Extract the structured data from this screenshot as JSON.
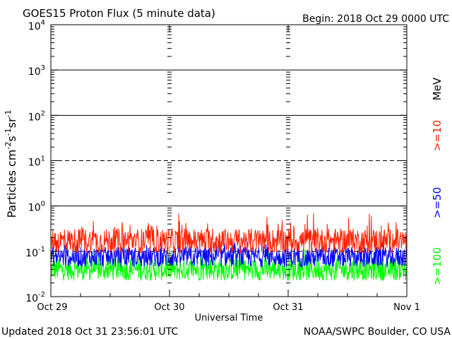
{
  "chart_data": {
    "type": "line",
    "title": "GOES15 Proton Flux (5 minute data)",
    "begin_label": "Begin: 2018 Oct 29 0000 UTC",
    "xlabel": "Universal Time",
    "ylabel": "Particles cm-2 s-1 sr-1",
    "ylabel_parts": {
      "main": "Particles cm",
      "e1": "-2",
      "s": "s",
      "e2": "-1",
      "sr": "sr",
      "e3": "-1"
    },
    "yscale": "log",
    "ylim": [
      0.01,
      10000
    ],
    "grid": true,
    "x_ticks": [
      "Oct 29",
      "Oct 30",
      "Oct 31",
      "Nov 1"
    ],
    "y_ticks": [
      {
        "base": "10",
        "exp": "4",
        "value": 10000
      },
      {
        "base": "10",
        "exp": "3",
        "value": 1000
      },
      {
        "base": "10",
        "exp": "2",
        "value": 100
      },
      {
        "base": "10",
        "exp": "1",
        "value": 10
      },
      {
        "base": "10",
        "exp": "0",
        "value": 1
      },
      {
        "base": "10",
        "exp": "-1",
        "value": 0.1
      },
      {
        "base": "10",
        "exp": "-2",
        "value": 0.01
      }
    ],
    "legend_unit": "MeV",
    "series": [
      {
        "name": ">=10",
        "color": "#ff2000",
        "baseline": 0.17,
        "spread": 0.55,
        "spike": 0.5
      },
      {
        "name": ">=50",
        "color": "#0000ff",
        "baseline": 0.075,
        "spread": 0.45,
        "spike": 0.22
      },
      {
        "name": ">=100",
        "color": "#00ff00",
        "baseline": 0.04,
        "spread": 0.5,
        "spike": 0.35
      }
    ],
    "duration_days": 3,
    "interval_minutes": 5
  },
  "footer": {
    "updated": "Updated 2018 Oct 31 23:56:01 UTC",
    "credit": "NOAA/SWPC Boulder, CO USA"
  }
}
